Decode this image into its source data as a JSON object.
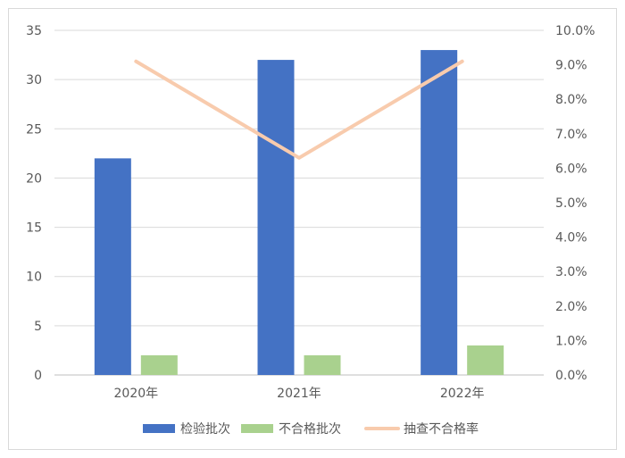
{
  "chart_data": {
    "type": "bar",
    "categories": [
      "2020年",
      "2021年",
      "2022年"
    ],
    "series": [
      {
        "name": "检验批次",
        "kind": "bar",
        "axis": "left",
        "color": "#4472c4",
        "values": [
          22,
          32,
          33
        ]
      },
      {
        "name": "不合格批次",
        "kind": "bar",
        "axis": "left",
        "color": "#a9d18e",
        "values": [
          2,
          2,
          3
        ]
      },
      {
        "name": "抽查不合格率",
        "kind": "line",
        "axis": "right",
        "color": "#f8cbad",
        "values": [
          9.1,
          6.3,
          9.1
        ]
      }
    ],
    "y_left": {
      "min": 0,
      "max": 35,
      "ticks": [
        "0",
        "5",
        "10",
        "15",
        "20",
        "25",
        "30",
        "35"
      ]
    },
    "y_right": {
      "min": 0,
      "max": 10,
      "ticks": [
        "0.0%",
        "1.0%",
        "2.0%",
        "3.0%",
        "4.0%",
        "5.0%",
        "6.0%",
        "7.0%",
        "8.0%",
        "9.0%",
        "10.0%"
      ]
    },
    "grid": true,
    "legend_position": "bottom"
  }
}
